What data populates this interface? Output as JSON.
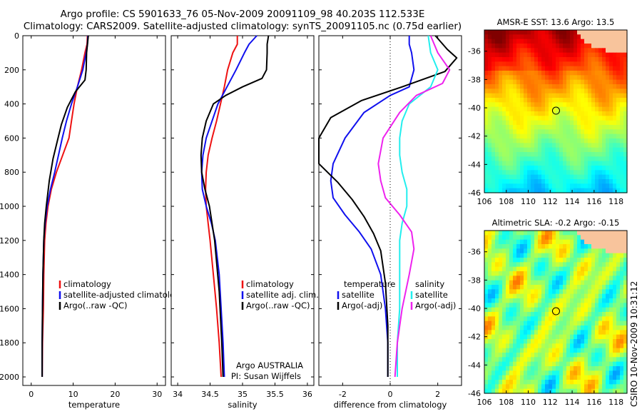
{
  "header": {
    "line1": "Argo profile: CS 5901633_76 05-Nov-2009 20091109_98 40.203S 112.533E",
    "line2": "Climatology: CARS2009. Satellite-adjusted climatology: synTS_20091105.nc (0.75d earlier)"
  },
  "colors": {
    "climatology": "#ee1111",
    "satellite": "#1010ee",
    "argo": "#000000",
    "argo_adj": "#ee22ee",
    "satellite_diff": "#22eeee"
  },
  "chart_data": [
    {
      "type": "line",
      "xlabel": "temperature",
      "xlim": [
        -2,
        32
      ],
      "ylim": [
        2050,
        0
      ],
      "xticks": [
        0,
        10,
        20,
        30
      ],
      "yticks": [
        0,
        200,
        400,
        600,
        800,
        1000,
        1200,
        1400,
        1600,
        1800,
        2000
      ],
      "legend": [
        "climatology",
        "satellite-adjusted climatology",
        "Argo(..raw -QC)"
      ],
      "series": [
        {
          "name": "climatology",
          "color": "#ee1111",
          "x": [
            13.4,
            13.3,
            12.8,
            12.0,
            11.0,
            10.2,
            9.6,
            9.0,
            7.5,
            6.0,
            4.8,
            4.0,
            3.5,
            3.2,
            3.0,
            2.9,
            2.7,
            2.6
          ],
          "y": [
            0,
            50,
            100,
            200,
            300,
            400,
            500,
            600,
            700,
            800,
            900,
            1000,
            1100,
            1200,
            1400,
            1600,
            1800,
            2000
          ]
        },
        {
          "name": "satellite-adjusted climatology",
          "color": "#1010ee",
          "x": [
            13.5,
            13.4,
            13.1,
            12.3,
            11.0,
            9.6,
            8.4,
            7.4,
            6.5,
            5.6,
            4.6,
            3.8,
            3.3,
            3.0,
            2.8,
            2.7,
            2.6,
            2.6
          ],
          "y": [
            0,
            50,
            100,
            200,
            300,
            400,
            500,
            600,
            700,
            800,
            900,
            1000,
            1100,
            1200,
            1400,
            1600,
            1800,
            2000
          ]
        },
        {
          "name": "Argo(..raw -QC)",
          "color": "#000000",
          "x": [
            13.6,
            13.4,
            13.2,
            13.1,
            12.8,
            10.5,
            8.6,
            7.2,
            6.2,
            5.2,
            4.3,
            3.6,
            3.2,
            3.0,
            2.8,
            2.7,
            2.6,
            2.6
          ],
          "y": [
            0,
            50,
            100,
            200,
            260,
            330,
            420,
            520,
            620,
            720,
            850,
            1000,
            1100,
            1200,
            1400,
            1600,
            1800,
            2000
          ]
        }
      ]
    },
    {
      "type": "line",
      "xlabel": "salinity",
      "xlim": [
        33.9,
        36.1
      ],
      "ylim": [
        2050,
        0
      ],
      "xticks": [
        34,
        34.5,
        35,
        35.5,
        36
      ],
      "legend": [
        "climatology",
        "satellite adj. clim.",
        "Argo(..raw -QC)"
      ],
      "series": [
        {
          "name": "climatology",
          "color": "#ee1111",
          "x": [
            34.92,
            34.92,
            34.85,
            34.77,
            34.72,
            34.66,
            34.6,
            34.53,
            34.47,
            34.44,
            34.43,
            34.44,
            34.47,
            34.5,
            34.55,
            34.6,
            34.64,
            34.67
          ],
          "y": [
            0,
            50,
            100,
            200,
            300,
            400,
            500,
            600,
            700,
            800,
            900,
            1000,
            1100,
            1200,
            1400,
            1600,
            1800,
            2000
          ]
        },
        {
          "name": "satellite adj. clim.",
          "color": "#1010ee",
          "x": [
            35.22,
            35.1,
            35.03,
            34.9,
            34.76,
            34.62,
            34.53,
            34.44,
            34.39,
            34.37,
            34.38,
            34.44,
            34.52,
            34.58,
            34.64,
            34.67,
            34.7,
            34.72
          ],
          "y": [
            0,
            50,
            100,
            200,
            300,
            400,
            500,
            600,
            700,
            800,
            900,
            1000,
            1100,
            1200,
            1400,
            1600,
            1800,
            2000
          ]
        },
        {
          "name": "Argo(..raw -QC)",
          "color": "#000000",
          "x": [
            35.4,
            35.38,
            35.38,
            35.37,
            35.3,
            35.0,
            34.74,
            34.55,
            34.44,
            34.38,
            34.36,
            34.37,
            34.42,
            34.49,
            34.57,
            34.64,
            34.68,
            34.7
          ],
          "y": [
            0,
            50,
            100,
            200,
            250,
            300,
            350,
            400,
            500,
            600,
            700,
            800,
            900,
            1000,
            1200,
            1500,
            1800,
            2000
          ]
        }
      ],
      "annotations": [
        "Argo AUSTRALIA",
        "PI: Susan Wijffels"
      ]
    },
    {
      "type": "line",
      "xlabel": "difference from climatology",
      "xlim": [
        -3,
        3
      ],
      "ylim": [
        2050,
        0
      ],
      "xticks": [
        -2,
        0,
        2
      ],
      "legend_left_title": "temperature",
      "legend_right_title": "salinity",
      "legend": [
        "satellite",
        "Argo(-adj)",
        "satellite",
        "Argo(-adj)"
      ],
      "series": [
        {
          "name": "temperature satellite",
          "color": "#1010ee",
          "x": [
            0.8,
            0.8,
            0.9,
            1.0,
            0.8,
            0.0,
            -1.1,
            -1.9,
            -2.4,
            -2.5,
            -2.4,
            -1.9,
            -1.3,
            -0.8,
            -0.4,
            -0.2,
            -0.1,
            -0.1
          ],
          "y": [
            0,
            50,
            100,
            200,
            300,
            350,
            450,
            600,
            750,
            850,
            950,
            1050,
            1150,
            1250,
            1400,
            1600,
            1800,
            2000
          ]
        },
        {
          "name": "temperature Argo(-adj)",
          "color": "#000000",
          "x": [
            1.9,
            2.4,
            2.8,
            2.3,
            0.5,
            -1.2,
            -2.5,
            -3.0,
            -3.0,
            -2.2,
            -1.6,
            -1.1,
            -0.7,
            -0.4,
            -0.2,
            -0.1,
            -0.1
          ],
          "y": [
            0,
            80,
            130,
            210,
            300,
            380,
            480,
            600,
            750,
            860,
            960,
            1060,
            1160,
            1260,
            1450,
            1700,
            2000
          ]
        },
        {
          "name": "salinity satellite",
          "color": "#22eeee",
          "x": [
            1.6,
            1.7,
            2.0,
            1.7,
            0.8,
            0.5,
            0.4,
            0.4,
            0.5,
            0.7,
            0.7,
            0.5,
            0.4,
            0.4,
            0.4,
            0.3,
            0.3
          ],
          "y": [
            0,
            100,
            200,
            300,
            400,
            500,
            600,
            700,
            800,
            900,
            1000,
            1100,
            1200,
            1400,
            1600,
            1800,
            2000
          ]
        },
        {
          "name": "salinity Argo(-adj)",
          "color": "#ee22ee",
          "x": [
            1.7,
            2.0,
            2.5,
            2.2,
            1.1,
            0.4,
            -0.3,
            -0.5,
            -0.4,
            -0.2,
            0.4,
            0.9,
            1.0,
            0.8,
            0.5,
            0.3,
            0.2
          ],
          "y": [
            0,
            100,
            200,
            280,
            350,
            450,
            600,
            750,
            850,
            950,
            1050,
            1150,
            1250,
            1400,
            1600,
            1800,
            2000
          ]
        }
      ]
    },
    {
      "type": "heatmap",
      "title": "AMSR-E SST: 13.6 Argo: 13.5",
      "xlim": [
        106,
        119
      ],
      "ylim": [
        -46,
        -34.5
      ],
      "xticks": [
        106,
        108,
        110,
        112,
        114,
        116,
        118
      ],
      "yticks": [
        -36,
        -38,
        -40,
        -42,
        -44,
        -46
      ],
      "marker": {
        "lon": 112.53,
        "lat": -40.2
      }
    },
    {
      "type": "heatmap",
      "title": "Altimetric SLA: -0.2 Argo: -0.15",
      "xlim": [
        106,
        119
      ],
      "ylim": [
        -46,
        -34.5
      ],
      "xticks": [
        106,
        108,
        110,
        112,
        114,
        116,
        118
      ],
      "yticks": [
        -36,
        -38,
        -40,
        -42,
        -44,
        -46
      ],
      "marker": {
        "lon": 112.53,
        "lat": -40.2
      }
    }
  ],
  "credit": "CSIRO 10-Nov-2009 10:31:12"
}
